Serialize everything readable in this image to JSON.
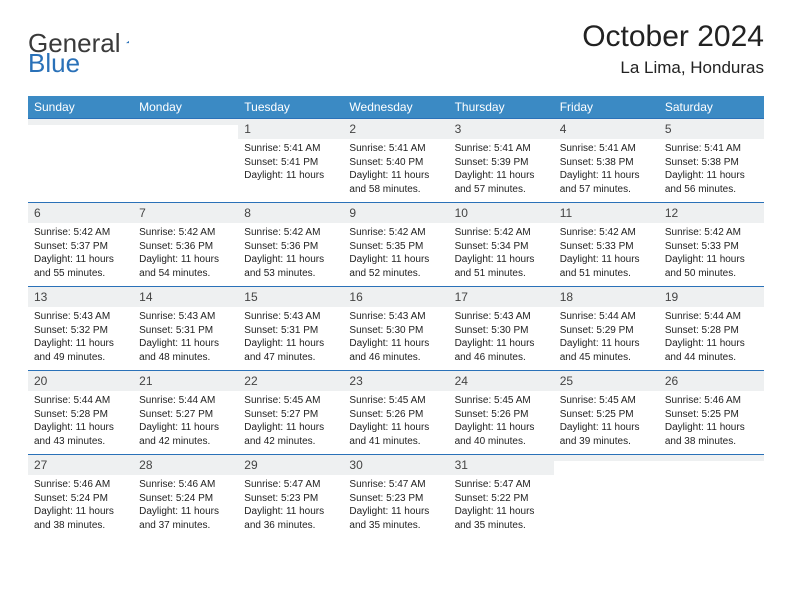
{
  "brand": {
    "part1": "General",
    "part2": "Blue"
  },
  "title": "October 2024",
  "location": "La Lima, Honduras",
  "colors": {
    "header_bg": "#3b8ac4",
    "header_text": "#ffffff",
    "daynum_bg": "#eef0f1",
    "border": "#2a71b8",
    "text": "#222222",
    "page_bg": "#ffffff"
  },
  "weekdays": [
    "Sunday",
    "Monday",
    "Tuesday",
    "Wednesday",
    "Thursday",
    "Friday",
    "Saturday"
  ],
  "weeks": [
    [
      {
        "n": "",
        "l1": "",
        "l2": "",
        "l3": "",
        "l4": ""
      },
      {
        "n": "",
        "l1": "",
        "l2": "",
        "l3": "",
        "l4": ""
      },
      {
        "n": "1",
        "l1": "Sunrise: 5:41 AM",
        "l2": "Sunset: 5:41 PM",
        "l3": "Daylight: 11 hours",
        "l4": ""
      },
      {
        "n": "2",
        "l1": "Sunrise: 5:41 AM",
        "l2": "Sunset: 5:40 PM",
        "l3": "Daylight: 11 hours",
        "l4": "and 58 minutes."
      },
      {
        "n": "3",
        "l1": "Sunrise: 5:41 AM",
        "l2": "Sunset: 5:39 PM",
        "l3": "Daylight: 11 hours",
        "l4": "and 57 minutes."
      },
      {
        "n": "4",
        "l1": "Sunrise: 5:41 AM",
        "l2": "Sunset: 5:38 PM",
        "l3": "Daylight: 11 hours",
        "l4": "and 57 minutes."
      },
      {
        "n": "5",
        "l1": "Sunrise: 5:41 AM",
        "l2": "Sunset: 5:38 PM",
        "l3": "Daylight: 11 hours",
        "l4": "and 56 minutes."
      }
    ],
    [
      {
        "n": "6",
        "l1": "Sunrise: 5:42 AM",
        "l2": "Sunset: 5:37 PM",
        "l3": "Daylight: 11 hours",
        "l4": "and 55 minutes."
      },
      {
        "n": "7",
        "l1": "Sunrise: 5:42 AM",
        "l2": "Sunset: 5:36 PM",
        "l3": "Daylight: 11 hours",
        "l4": "and 54 minutes."
      },
      {
        "n": "8",
        "l1": "Sunrise: 5:42 AM",
        "l2": "Sunset: 5:36 PM",
        "l3": "Daylight: 11 hours",
        "l4": "and 53 minutes."
      },
      {
        "n": "9",
        "l1": "Sunrise: 5:42 AM",
        "l2": "Sunset: 5:35 PM",
        "l3": "Daylight: 11 hours",
        "l4": "and 52 minutes."
      },
      {
        "n": "10",
        "l1": "Sunrise: 5:42 AM",
        "l2": "Sunset: 5:34 PM",
        "l3": "Daylight: 11 hours",
        "l4": "and 51 minutes."
      },
      {
        "n": "11",
        "l1": "Sunrise: 5:42 AM",
        "l2": "Sunset: 5:33 PM",
        "l3": "Daylight: 11 hours",
        "l4": "and 51 minutes."
      },
      {
        "n": "12",
        "l1": "Sunrise: 5:42 AM",
        "l2": "Sunset: 5:33 PM",
        "l3": "Daylight: 11 hours",
        "l4": "and 50 minutes."
      }
    ],
    [
      {
        "n": "13",
        "l1": "Sunrise: 5:43 AM",
        "l2": "Sunset: 5:32 PM",
        "l3": "Daylight: 11 hours",
        "l4": "and 49 minutes."
      },
      {
        "n": "14",
        "l1": "Sunrise: 5:43 AM",
        "l2": "Sunset: 5:31 PM",
        "l3": "Daylight: 11 hours",
        "l4": "and 48 minutes."
      },
      {
        "n": "15",
        "l1": "Sunrise: 5:43 AM",
        "l2": "Sunset: 5:31 PM",
        "l3": "Daylight: 11 hours",
        "l4": "and 47 minutes."
      },
      {
        "n": "16",
        "l1": "Sunrise: 5:43 AM",
        "l2": "Sunset: 5:30 PM",
        "l3": "Daylight: 11 hours",
        "l4": "and 46 minutes."
      },
      {
        "n": "17",
        "l1": "Sunrise: 5:43 AM",
        "l2": "Sunset: 5:30 PM",
        "l3": "Daylight: 11 hours",
        "l4": "and 46 minutes."
      },
      {
        "n": "18",
        "l1": "Sunrise: 5:44 AM",
        "l2": "Sunset: 5:29 PM",
        "l3": "Daylight: 11 hours",
        "l4": "and 45 minutes."
      },
      {
        "n": "19",
        "l1": "Sunrise: 5:44 AM",
        "l2": "Sunset: 5:28 PM",
        "l3": "Daylight: 11 hours",
        "l4": "and 44 minutes."
      }
    ],
    [
      {
        "n": "20",
        "l1": "Sunrise: 5:44 AM",
        "l2": "Sunset: 5:28 PM",
        "l3": "Daylight: 11 hours",
        "l4": "and 43 minutes."
      },
      {
        "n": "21",
        "l1": "Sunrise: 5:44 AM",
        "l2": "Sunset: 5:27 PM",
        "l3": "Daylight: 11 hours",
        "l4": "and 42 minutes."
      },
      {
        "n": "22",
        "l1": "Sunrise: 5:45 AM",
        "l2": "Sunset: 5:27 PM",
        "l3": "Daylight: 11 hours",
        "l4": "and 42 minutes."
      },
      {
        "n": "23",
        "l1": "Sunrise: 5:45 AM",
        "l2": "Sunset: 5:26 PM",
        "l3": "Daylight: 11 hours",
        "l4": "and 41 minutes."
      },
      {
        "n": "24",
        "l1": "Sunrise: 5:45 AM",
        "l2": "Sunset: 5:26 PM",
        "l3": "Daylight: 11 hours",
        "l4": "and 40 minutes."
      },
      {
        "n": "25",
        "l1": "Sunrise: 5:45 AM",
        "l2": "Sunset: 5:25 PM",
        "l3": "Daylight: 11 hours",
        "l4": "and 39 minutes."
      },
      {
        "n": "26",
        "l1": "Sunrise: 5:46 AM",
        "l2": "Sunset: 5:25 PM",
        "l3": "Daylight: 11 hours",
        "l4": "and 38 minutes."
      }
    ],
    [
      {
        "n": "27",
        "l1": "Sunrise: 5:46 AM",
        "l2": "Sunset: 5:24 PM",
        "l3": "Daylight: 11 hours",
        "l4": "and 38 minutes."
      },
      {
        "n": "28",
        "l1": "Sunrise: 5:46 AM",
        "l2": "Sunset: 5:24 PM",
        "l3": "Daylight: 11 hours",
        "l4": "and 37 minutes."
      },
      {
        "n": "29",
        "l1": "Sunrise: 5:47 AM",
        "l2": "Sunset: 5:23 PM",
        "l3": "Daylight: 11 hours",
        "l4": "and 36 minutes."
      },
      {
        "n": "30",
        "l1": "Sunrise: 5:47 AM",
        "l2": "Sunset: 5:23 PM",
        "l3": "Daylight: 11 hours",
        "l4": "and 35 minutes."
      },
      {
        "n": "31",
        "l1": "Sunrise: 5:47 AM",
        "l2": "Sunset: 5:22 PM",
        "l3": "Daylight: 11 hours",
        "l4": "and 35 minutes."
      },
      {
        "n": "",
        "l1": "",
        "l2": "",
        "l3": "",
        "l4": ""
      },
      {
        "n": "",
        "l1": "",
        "l2": "",
        "l3": "",
        "l4": ""
      }
    ]
  ]
}
